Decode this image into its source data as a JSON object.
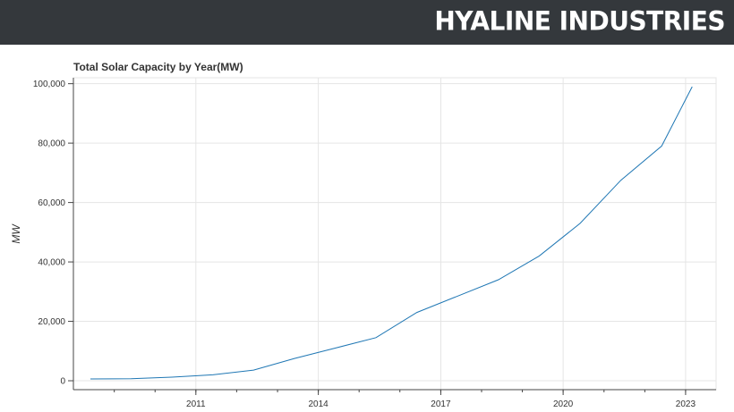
{
  "header": {
    "brand": "HYALINE INDUSTRIES"
  },
  "colors": {
    "topbar": "#34383c",
    "line": "#1f77b4",
    "grid": "#e5e5e5"
  },
  "chart_data": {
    "type": "line",
    "title": "Total Solar Capacity by Year(MW)",
    "xlabel": "",
    "ylabel": "MW",
    "x": [
      "2009-01-01",
      "2010-01-01",
      "2011-01-01",
      "2012-01-01",
      "2013-01-01",
      "2014-01-01",
      "2015-01-01",
      "2016-01-01",
      "2017-01-01",
      "2018-01-01",
      "2019-01-01",
      "2020-01-01",
      "2021-01-01",
      "2022-01-01",
      "2023-01-01"
    ],
    "series": [
      {
        "values": [
          600,
          700,
          1200,
          2000,
          3600,
          7500,
          11000,
          14500,
          23000,
          28500,
          34000,
          42000,
          53000,
          67500,
          79000,
          99000
        ],
        "x": [
          "2008-06-01",
          "2009-06-01",
          "2010-06-01",
          "2011-06-01",
          "2012-06-01",
          "2013-06-01",
          "2014-06-01",
          "2015-06-01",
          "2016-06-01",
          "2017-06-01",
          "2018-06-01",
          "2019-06-01",
          "2020-06-01",
          "2021-06-01",
          "2022-06-01",
          "2023-03-01"
        ]
      }
    ],
    "x_tick_labels": [
      "2011",
      "2014",
      "2017",
      "2020",
      "2023"
    ],
    "y_tick_labels": [
      "0",
      "20,000",
      "40,000",
      "60,000",
      "80,000",
      "100,000"
    ],
    "y_ticks": [
      0,
      20000,
      40000,
      60000,
      80000,
      100000
    ],
    "x_ticks": [
      "2011-01-01",
      "2014-01-01",
      "2017-01-01",
      "2020-01-01",
      "2023-01-01"
    ],
    "xlim": [
      "2008-01-01",
      "2023-10-01"
    ],
    "ylim": [
      -3000,
      102000
    ],
    "grid": true
  }
}
